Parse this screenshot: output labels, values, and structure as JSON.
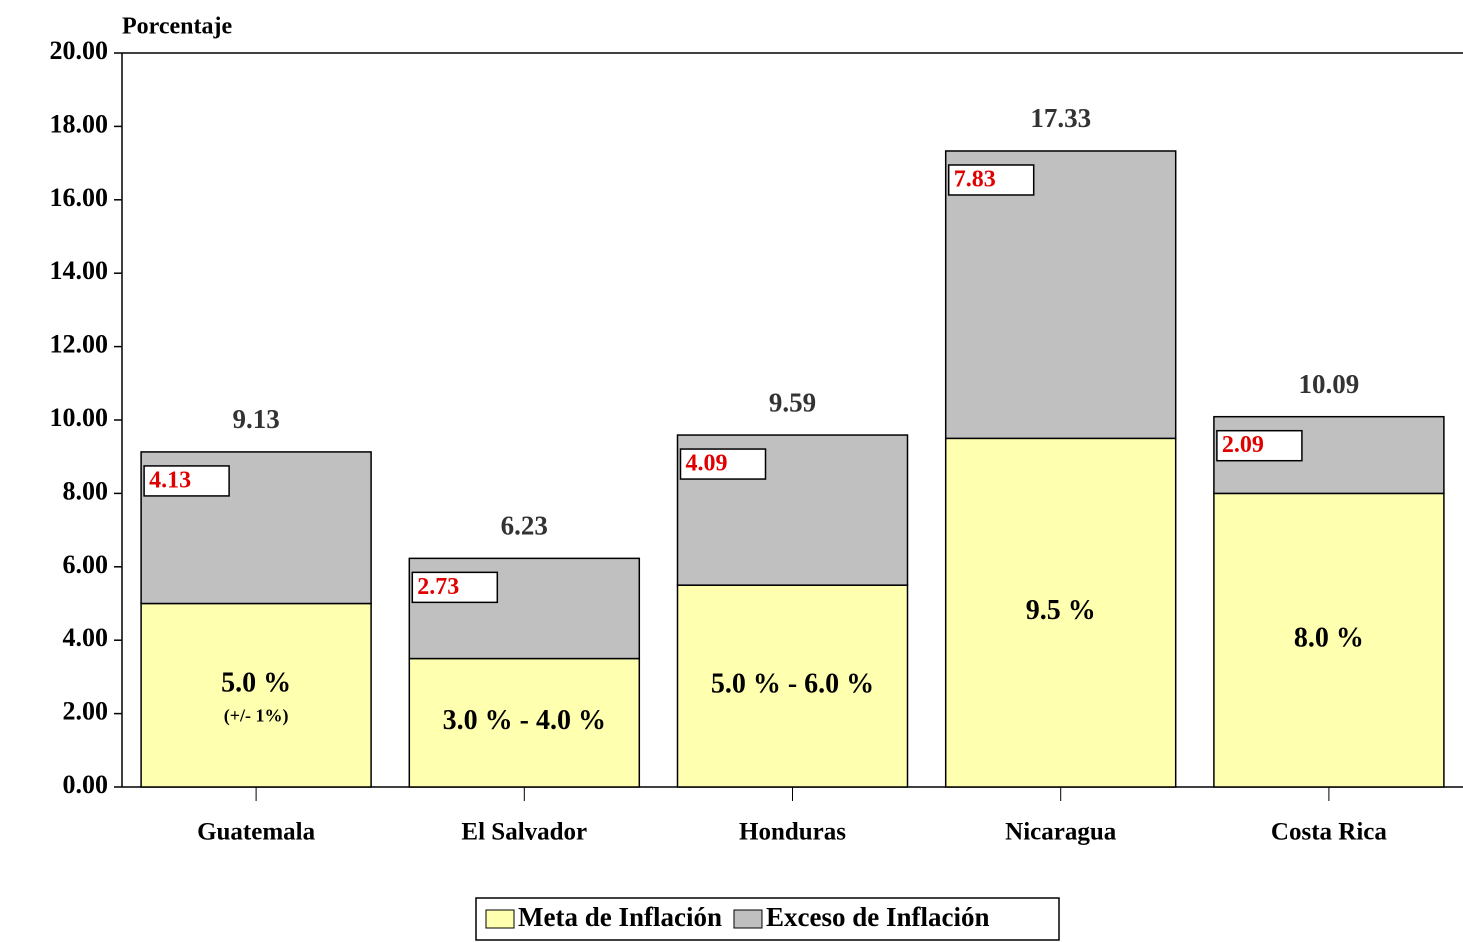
{
  "chart_data": {
    "type": "stacked-bar",
    "y_label": "Porcentaje",
    "categories": [
      "Guatemala",
      "El Salvador",
      "Honduras",
      "Nicaragua",
      "Costa Rica"
    ],
    "series": [
      {
        "name": "Meta de Inflación",
        "color": "#ffffb0",
        "values": [
          5.0,
          3.5,
          5.5,
          9.5,
          8.0
        ]
      },
      {
        "name": "Exceso de Inflación",
        "color": "#c0c0c0",
        "values": [
          4.13,
          2.73,
          4.09,
          7.83,
          2.09
        ]
      }
    ],
    "totals": [
      9.13,
      6.23,
      9.59,
      17.33,
      10.09
    ],
    "target_labels": [
      "5.0  %",
      "3.0 % - 4.0 %",
      "5.0 % - 6.0 %",
      "9.5 %",
      "8.0 %"
    ],
    "target_note": "(+/- 1%)",
    "ylim": [
      0,
      20
    ],
    "yticks": [
      {
        "value": 0,
        "label": "0.00"
      },
      {
        "value": 2,
        "label": "2.00"
      },
      {
        "value": 4,
        "label": "4.00"
      },
      {
        "value": 6,
        "label": "6.00"
      },
      {
        "value": 8,
        "label": "8.00"
      },
      {
        "value": 10,
        "label": "10.00"
      },
      {
        "value": 12,
        "label": "12.00"
      },
      {
        "value": 14,
        "label": "14.00"
      },
      {
        "value": 16,
        "label": "16.00"
      },
      {
        "value": 18,
        "label": "18.00"
      },
      {
        "value": 20,
        "label": "20.00"
      }
    ]
  }
}
